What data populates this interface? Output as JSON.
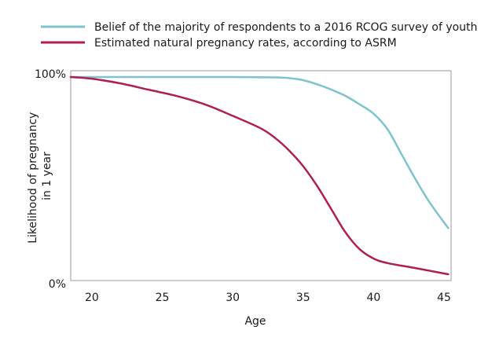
{
  "chart_data": {
    "type": "line",
    "title": "",
    "xlabel": "Age",
    "ylabel": "Likelihood of pregnancy in 1 year",
    "ylabel_lines": [
      "Likelihood of pregnancy",
      "in 1 year"
    ],
    "xlim": [
      18.5,
      45.5
    ],
    "ylim": [
      0,
      100
    ],
    "xticks": [
      20,
      25,
      30,
      35,
      40,
      45
    ],
    "xtick_labels": [
      "20",
      "25",
      "30",
      "35",
      "40",
      "45"
    ],
    "yticks": [
      0,
      100
    ],
    "ytick_labels": [
      "0%",
      "100%"
    ],
    "grid": false,
    "legend_position": "top-left",
    "series": [
      {
        "name": "Belief of the majority of respondents to a 2016 RCOG survey of youth",
        "color": "#7fc3cc",
        "x": [
          18.5,
          20,
          25,
          30,
          33,
          34,
          35,
          36,
          37,
          38,
          39,
          40,
          41,
          42,
          43,
          44,
          45.3
        ],
        "y": [
          97,
          97,
          97,
          97,
          96.8,
          96.5,
          95.5,
          93.5,
          91,
          88,
          84,
          79.5,
          72,
          60,
          48,
          37,
          25
        ]
      },
      {
        "name": "Estimated natural pregnancy rates, according to ASRM",
        "color": "#b0204f",
        "x": [
          18.5,
          20,
          22,
          24,
          26,
          28,
          30,
          32,
          33,
          34,
          35,
          36,
          37,
          38,
          39,
          40,
          41,
          43,
          45.3
        ],
        "y": [
          97,
          96.2,
          94,
          91,
          88,
          84,
          78.5,
          72.5,
          68,
          62,
          54.5,
          45,
          34,
          23,
          15,
          10.5,
          8.3,
          5.9,
          3
        ]
      }
    ]
  }
}
